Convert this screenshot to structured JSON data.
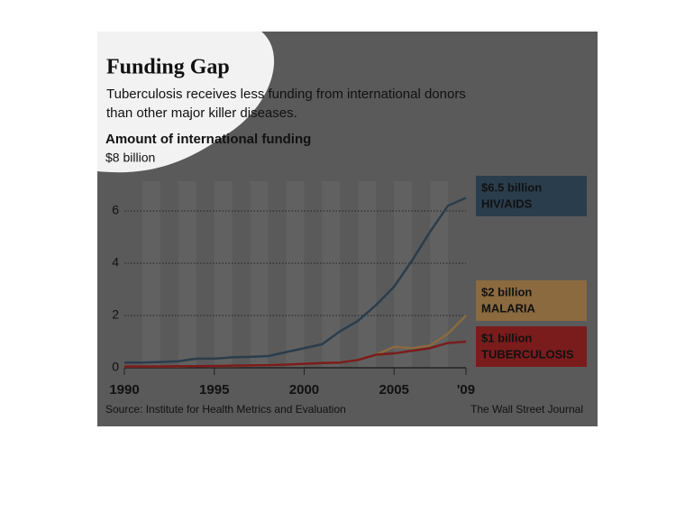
{
  "chart_data": {
    "type": "line",
    "title": "Funding Gap",
    "subtitle": [
      "Tuberculosis receives less funding from international donors",
      "than other major killer diseases."
    ],
    "y_label": "Amount of international funding",
    "source": "Source: Institute for Health Metrics and Evaluation",
    "credit": "The Wall Street Journal",
    "x": [
      1990,
      1991,
      1992,
      1993,
      1994,
      1995,
      1996,
      1997,
      1998,
      1999,
      2000,
      2001,
      2002,
      2003,
      2004,
      2005,
      2006,
      2007,
      2008,
      2009
    ],
    "xlim": [
      1990,
      2009
    ],
    "xticks": [
      1990,
      1995,
      2000,
      2005,
      {
        "value": 2009,
        "label": "'09"
      }
    ],
    "ylim": [
      0,
      8
    ],
    "yticks": [
      0,
      2,
      4,
      6,
      {
        "value": 8,
        "label": "$8 billion"
      }
    ],
    "grid": true,
    "series": [
      {
        "name": "HIV/AIDS",
        "value_label": "$6.5 billion",
        "color": "#2a3d4c",
        "values": [
          0.2,
          0.2,
          0.22,
          0.25,
          0.35,
          0.35,
          0.4,
          0.42,
          0.45,
          0.6,
          0.75,
          0.9,
          1.4,
          1.8,
          2.4,
          3.1,
          4.1,
          5.2,
          6.2,
          6.5
        ]
      },
      {
        "name": "MALARIA",
        "value_label": "$2 billion",
        "color": "#8a6a3e",
        "values": [
          0.05,
          0.05,
          0.05,
          0.05,
          0.06,
          0.06,
          0.07,
          0.08,
          0.1,
          0.12,
          0.15,
          0.18,
          0.2,
          0.3,
          0.5,
          0.8,
          0.75,
          0.85,
          1.3,
          2.0
        ]
      },
      {
        "name": "TUBERCULOSIS",
        "value_label": "$1 billion",
        "color": "#7a1c1c",
        "values": [
          0.05,
          0.05,
          0.05,
          0.06,
          0.06,
          0.07,
          0.08,
          0.09,
          0.1,
          0.12,
          0.15,
          0.18,
          0.2,
          0.3,
          0.5,
          0.55,
          0.65,
          0.75,
          0.95,
          1.0
        ]
      }
    ]
  }
}
